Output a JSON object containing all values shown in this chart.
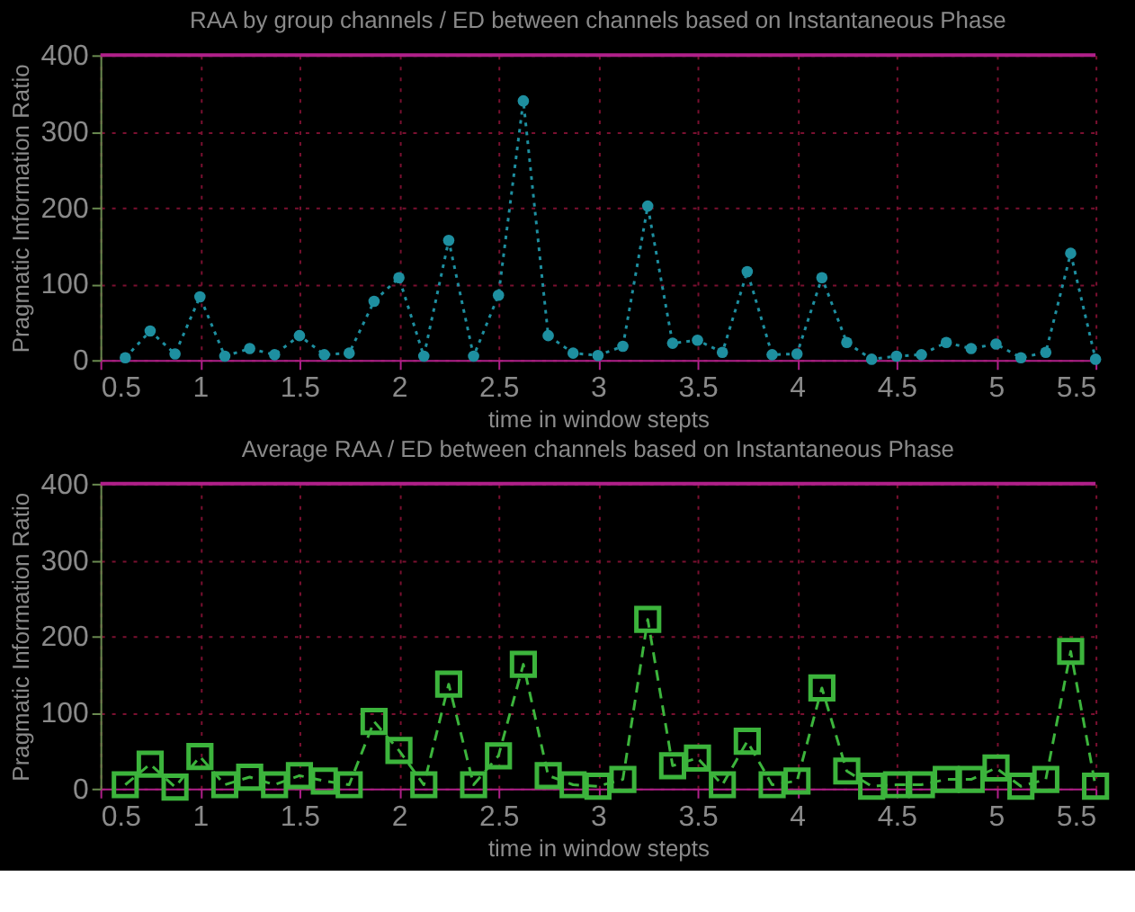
{
  "chart_data": [
    {
      "type": "line",
      "title": "RAA  by group channels / ED between channels based on Instantaneous Phase",
      "xlabel": "time in window stepts",
      "ylabel": "Pragmatic Information Ratio",
      "x": [
        0.625,
        0.75,
        0.875,
        1.0,
        1.125,
        1.25,
        1.375,
        1.5,
        1.625,
        1.75,
        1.875,
        2.0,
        2.125,
        2.25,
        2.375,
        2.5,
        2.625,
        2.75,
        2.875,
        3.0,
        3.125,
        3.25,
        3.375,
        3.5,
        3.625,
        3.75,
        3.875,
        4.0,
        4.125,
        4.25,
        4.375,
        4.5,
        4.625,
        4.75,
        4.875,
        5.0,
        5.125,
        5.25,
        5.375,
        5.5
      ],
      "series": [
        {
          "color": "#1e8fa0",
          "values": [
            3,
            38,
            8,
            83,
            5,
            15,
            7,
            32,
            7,
            9,
            77,
            108,
            5,
            157,
            5,
            85,
            340,
            32,
            9,
            6,
            18,
            202,
            22,
            26,
            10,
            116,
            7,
            8,
            108,
            23,
            1,
            5,
            7,
            23,
            15,
            21,
            3,
            10,
            140,
            1
          ]
        }
      ],
      "xlim": [
        0.5,
        5.5
      ],
      "xticks": [
        0.5,
        1,
        1.5,
        2,
        2.5,
        3,
        3.5,
        4,
        4.5,
        5,
        5.5
      ],
      "ylim": [
        0,
        400
      ],
      "yticks": [
        0,
        100,
        200,
        300,
        400
      ],
      "grid": true,
      "marker": "circle",
      "line_style": "dotted"
    },
    {
      "type": "line",
      "title": "Average RAA / ED between channels based on Instantaneous Phase",
      "xlabel": "time in window stepts",
      "ylabel": "Pragmatic Information Ratio",
      "x": [
        0.625,
        0.75,
        0.875,
        1.0,
        1.125,
        1.25,
        1.375,
        1.5,
        1.625,
        1.75,
        1.875,
        2.0,
        2.125,
        2.25,
        2.375,
        2.5,
        2.625,
        2.75,
        2.875,
        3.0,
        3.125,
        3.25,
        3.375,
        3.5,
        3.625,
        3.75,
        3.875,
        4.0,
        4.125,
        4.25,
        4.375,
        4.5,
        4.625,
        4.75,
        4.875,
        5.0,
        5.125,
        5.25,
        5.375,
        5.5
      ],
      "series": [
        {
          "color": "#3cb43c",
          "values": [
            5,
            32,
            2,
            42,
            5,
            15,
            5,
            17,
            10,
            5,
            88,
            50,
            5,
            137,
            5,
            43,
            163,
            17,
            5,
            3,
            12,
            222,
            30,
            40,
            5,
            62,
            5,
            10,
            132,
            23,
            3,
            5,
            5,
            12,
            12,
            27,
            3,
            12,
            180,
            3
          ]
        }
      ],
      "xlim": [
        0.5,
        5.5
      ],
      "xticks": [
        0.5,
        1,
        1.5,
        2,
        2.5,
        3,
        3.5,
        4,
        4.5,
        5,
        5.5
      ],
      "ylim": [
        0,
        400
      ],
      "yticks": [
        0,
        100,
        200,
        300,
        400
      ],
      "grid": true,
      "marker": "square",
      "line_style": "dashed"
    }
  ]
}
